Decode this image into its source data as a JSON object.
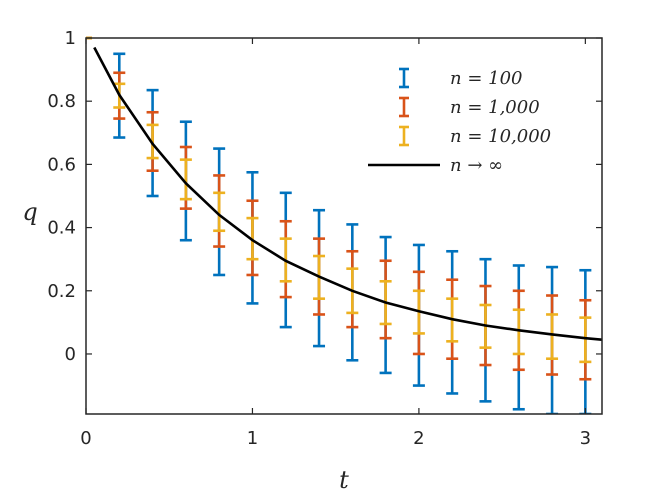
{
  "chart_data": {
    "type": "line",
    "title": "",
    "xlabel": "t",
    "ylabel": "q",
    "xlim": [
      0,
      3.1
    ],
    "ylim": [
      -0.19,
      1.0
    ],
    "grid": false,
    "legend_position": "top-right",
    "x_ticks": [
      0,
      1,
      2,
      3
    ],
    "y_ticks": [
      0,
      0.2,
      0.4,
      0.6,
      0.8,
      1
    ],
    "x_tick_labels": [
      "0",
      "1",
      "2",
      "3"
    ],
    "y_tick_labels": [
      "0",
      "0.2",
      "0.4",
      "0.6",
      "0.8",
      "1"
    ],
    "series": [
      {
        "name": "n = 100",
        "kind": "errorbar",
        "color": "#0072BD",
        "x": [
          0,
          0.2,
          0.4,
          0.6,
          0.8,
          1.0,
          1.2,
          1.4,
          1.6,
          1.8,
          2.0,
          2.2,
          2.4,
          2.6,
          2.8,
          3.0
        ],
        "lower": [
          1.0,
          0.685,
          0.5,
          0.36,
          0.25,
          0.16,
          0.085,
          0.025,
          -0.02,
          -0.06,
          -0.1,
          -0.125,
          -0.15,
          -0.175,
          -0.19,
          -0.19
        ],
        "upper": [
          1.0,
          0.95,
          0.835,
          0.735,
          0.65,
          0.575,
          0.51,
          0.455,
          0.41,
          0.37,
          0.345,
          0.325,
          0.3,
          0.28,
          0.275,
          0.265
        ]
      },
      {
        "name": "n = 1,000",
        "kind": "errorbar",
        "color": "#D95319",
        "x": [
          0,
          0.2,
          0.4,
          0.6,
          0.8,
          1.0,
          1.2,
          1.4,
          1.6,
          1.8,
          2.0,
          2.2,
          2.4,
          2.6,
          2.8,
          3.0
        ],
        "lower": [
          1.0,
          0.745,
          0.58,
          0.46,
          0.34,
          0.25,
          0.18,
          0.125,
          0.085,
          0.05,
          0.0,
          -0.015,
          -0.035,
          -0.05,
          -0.065,
          -0.08
        ],
        "upper": [
          1.0,
          0.89,
          0.765,
          0.655,
          0.565,
          0.485,
          0.42,
          0.365,
          0.325,
          0.295,
          0.26,
          0.235,
          0.215,
          0.2,
          0.185,
          0.17
        ]
      },
      {
        "name": "n = 10,000",
        "kind": "errorbar",
        "color": "#EDB120",
        "x": [
          0,
          0.2,
          0.4,
          0.6,
          0.8,
          1.0,
          1.2,
          1.4,
          1.6,
          1.8,
          2.0,
          2.2,
          2.4,
          2.6,
          2.8,
          3.0
        ],
        "lower": [
          1.0,
          0.78,
          0.62,
          0.49,
          0.39,
          0.3,
          0.23,
          0.175,
          0.13,
          0.095,
          0.065,
          0.04,
          0.02,
          0.0,
          -0.015,
          -0.025
        ],
        "upper": [
          1.0,
          0.855,
          0.725,
          0.615,
          0.51,
          0.43,
          0.365,
          0.31,
          0.27,
          0.23,
          0.2,
          0.175,
          0.155,
          0.14,
          0.125,
          0.115
        ]
      },
      {
        "name": "n → ∞",
        "kind": "line",
        "color": "#000000",
        "x": [
          0.05,
          0.2,
          0.4,
          0.6,
          0.8,
          1.0,
          1.2,
          1.4,
          1.6,
          1.8,
          2.0,
          2.2,
          2.4,
          2.6,
          2.8,
          3.0,
          3.1
        ],
        "y": [
          0.97,
          0.82,
          0.665,
          0.54,
          0.44,
          0.36,
          0.295,
          0.245,
          0.2,
          0.163,
          0.135,
          0.11,
          0.09,
          0.075,
          0.062,
          0.05,
          0.045
        ]
      }
    ]
  }
}
